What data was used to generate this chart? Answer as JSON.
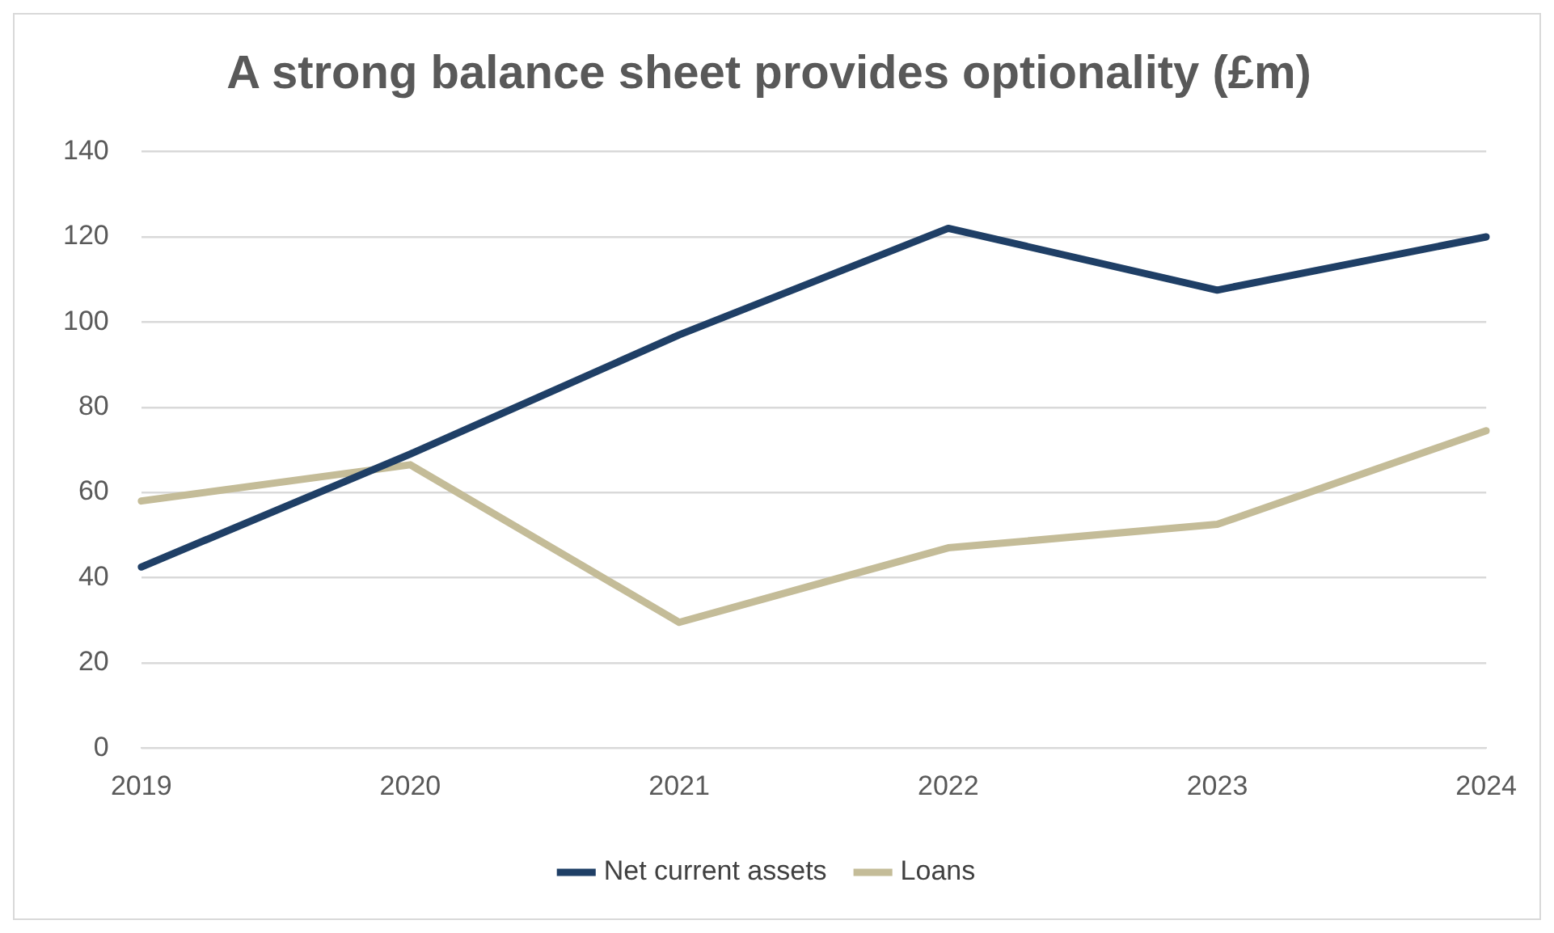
{
  "chart_data": {
    "type": "line",
    "title": "A strong balance sheet provides optionality (£m)",
    "categories": [
      "2019",
      "2020",
      "2021",
      "2022",
      "2023",
      "2024"
    ],
    "series": [
      {
        "name": "Net current assets",
        "color": "#1f3f66",
        "values": [
          42.5,
          69,
          97,
          122,
          107.5,
          120
        ]
      },
      {
        "name": "Loans",
        "color": "#c4bc98",
        "values": [
          58,
          66.5,
          29.5,
          47,
          52.5,
          74.5
        ]
      }
    ],
    "ylim": [
      0,
      140
    ],
    "yticks": [
      0,
      20,
      40,
      60,
      80,
      100,
      120,
      140
    ],
    "grid": "y",
    "legend": "bottom",
    "marker": "none",
    "line_style": "solid"
  }
}
